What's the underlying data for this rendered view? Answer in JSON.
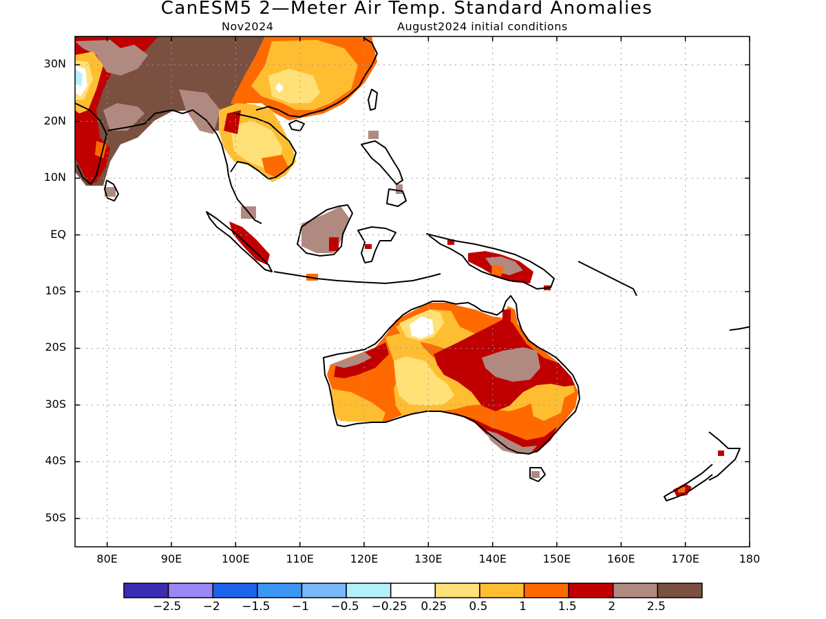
{
  "title": "CanESM5 2—Meter Air Temp. Standard Anomalies",
  "subtitle_left": "Nov2024",
  "subtitle_right": "August2024 initial conditions",
  "map": {
    "lat_range": [
      -55,
      35
    ],
    "lon_range": [
      75,
      180
    ],
    "y_ticks": [
      {
        "lat": 30,
        "label": "30N"
      },
      {
        "lat": 20,
        "label": "20N"
      },
      {
        "lat": 10,
        "label": "10N"
      },
      {
        "lat": 0,
        "label": "EQ"
      },
      {
        "lat": -10,
        "label": "10S"
      },
      {
        "lat": -20,
        "label": "20S"
      },
      {
        "lat": -30,
        "label": "30S"
      },
      {
        "lat": -40,
        "label": "40S"
      },
      {
        "lat": -50,
        "label": "50S"
      }
    ],
    "x_ticks": [
      {
        "lon": 80,
        "label": "80E"
      },
      {
        "lon": 90,
        "label": "90E"
      },
      {
        "lon": 100,
        "label": "100E"
      },
      {
        "lon": 110,
        "label": "110E"
      },
      {
        "lon": 120,
        "label": "120E"
      },
      {
        "lon": 130,
        "label": "130E"
      },
      {
        "lon": 140,
        "label": "140E"
      },
      {
        "lon": 150,
        "label": "150E"
      },
      {
        "lon": 160,
        "label": "160E"
      },
      {
        "lon": 170,
        "label": "170E"
      },
      {
        "lon": 180,
        "label": "180"
      }
    ],
    "grid": "dotted"
  },
  "colorbar": {
    "colors": [
      "#3a2db4",
      "#9b87f5",
      "#1e64eb",
      "#3c96f5",
      "#78b9fa",
      "#b4f0fa",
      "#ffffff",
      "#ffe178",
      "#ffbe32",
      "#ff6a00",
      "#c00000",
      "#b08a80",
      "#7a5040"
    ],
    "labels": [
      "−2.5",
      "−2",
      "−1.5",
      "−1",
      "−0.5",
      "−0.25",
      "0.25",
      "0.5",
      "1",
      "1.5",
      "2",
      "2.5"
    ]
  }
}
